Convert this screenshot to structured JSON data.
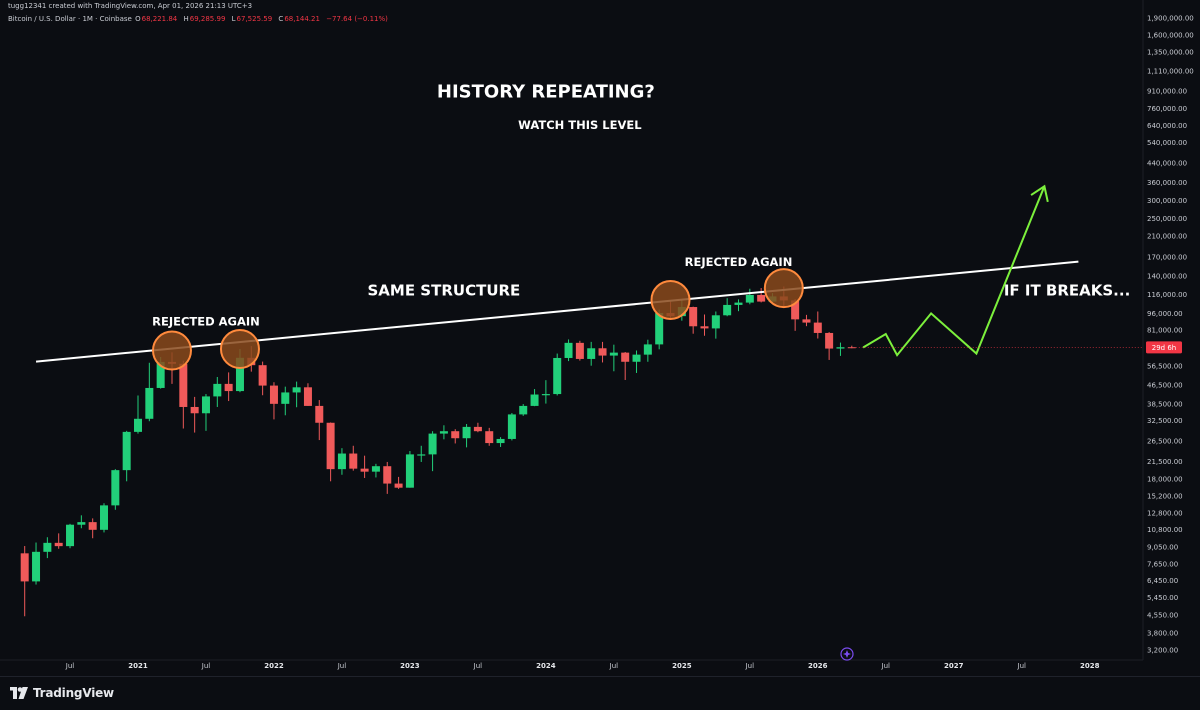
{
  "header": {
    "attribution": "tugg12341 created with TradingView.com, Apr 01, 2026 21:13 UTC+3",
    "symbol": "Bitcoin / U.S. Dollar · 1M · Coinbase",
    "ohlc": [
      {
        "label": "O",
        "value": "68,221.84"
      },
      {
        "label": "H",
        "value": "69,285.99"
      },
      {
        "label": "L",
        "value": "67,525.59"
      },
      {
        "label": "C",
        "value": "68,144.21"
      }
    ],
    "change": "−77.64 (−0.11%)"
  },
  "footer": {
    "brand": "TradingView"
  },
  "colors": {
    "up": "#22d07a",
    "down": "#f05a5a",
    "background": "#0b0d12",
    "projection": "#7cf03c",
    "circle_fill": "#8a4a1c",
    "circle_stroke": "#ff8a3d",
    "trendline": "#ffffff",
    "price_badge": "#f23645"
  },
  "chart_data": {
    "type": "candlestick",
    "scale": "log",
    "ylim": [
      3000,
      2000000
    ],
    "xlim": [
      "2020-05",
      "2028-06"
    ],
    "y_ticks": [
      "1,900,000.00",
      "1,600,000.00",
      "1,350,000.00",
      "1,110,000.00",
      "910,000.00",
      "760,000.00",
      "640,000.00",
      "540,000.00",
      "440,000.00",
      "360,000.00",
      "300,000.00",
      "250,000.00",
      "210,000.00",
      "170,000.00",
      "140,000.00",
      "116,000.00",
      "96,000.00",
      "81,000.00",
      "56,500.00",
      "46,500.00",
      "38,500.00",
      "32,500.00",
      "26,500.00",
      "21,500.00",
      "18,000.00",
      "15,200.00",
      "12,800.00",
      "10,800.00",
      "9,050.00",
      "7,650.00",
      "6,450.00",
      "5,450.00",
      "4,550.00",
      "3,800.00",
      "3,200.00"
    ],
    "x_ticks": [
      {
        "label": "Jul",
        "date": "2020-07"
      },
      {
        "label": "2021",
        "date": "2021-01"
      },
      {
        "label": "Jul",
        "date": "2021-07"
      },
      {
        "label": "2022",
        "date": "2022-01"
      },
      {
        "label": "Jul",
        "date": "2022-07"
      },
      {
        "label": "2023",
        "date": "2023-01"
      },
      {
        "label": "Jul",
        "date": "2023-07"
      },
      {
        "label": "2024",
        "date": "2024-01"
      },
      {
        "label": "Jul",
        "date": "2024-07"
      },
      {
        "label": "2025",
        "date": "2025-01"
      },
      {
        "label": "Jul",
        "date": "2025-07"
      },
      {
        "label": "2026",
        "date": "2026-01"
      },
      {
        "label": "Jul",
        "date": "2026-07"
      },
      {
        "label": "2027",
        "date": "2027-01"
      },
      {
        "label": "Jul",
        "date": "2027-07"
      },
      {
        "label": "2028",
        "date": "2028-01"
      }
    ],
    "current_price_label": "29d 6h",
    "candles": [
      [
        "2020-03",
        8500,
        9150,
        4500,
        6400
      ],
      [
        "2020-04",
        6400,
        9480,
        6200,
        8630
      ],
      [
        "2020-05",
        8630,
        10000,
        8100,
        9450
      ],
      [
        "2020-06",
        9450,
        10400,
        8900,
        9140
      ],
      [
        "2020-07",
        9140,
        11450,
        8950,
        11350
      ],
      [
        "2020-08",
        11350,
        12480,
        10950,
        11650
      ],
      [
        "2020-09",
        11650,
        12100,
        9900,
        10780
      ],
      [
        "2020-10",
        10780,
        14100,
        10500,
        13800
      ],
      [
        "2020-11",
        13800,
        19900,
        13200,
        19700
      ],
      [
        "2020-12",
        19700,
        29300,
        17600,
        29000
      ],
      [
        "2021-01",
        29000,
        41900,
        28500,
        33100
      ],
      [
        "2021-02",
        33100,
        58300,
        32300,
        45200
      ],
      [
        "2021-03",
        45200,
        61800,
        44900,
        58800
      ],
      [
        "2021-04",
        58800,
        64800,
        47100,
        57700
      ],
      [
        "2021-05",
        57700,
        59500,
        30000,
        37300
      ],
      [
        "2021-06",
        37300,
        41300,
        28800,
        35000
      ],
      [
        "2021-07",
        35000,
        42500,
        29300,
        41500
      ],
      [
        "2021-08",
        41500,
        50500,
        37300,
        47100
      ],
      [
        "2021-09",
        47100,
        52900,
        39600,
        43800
      ],
      [
        "2021-10",
        43800,
        67000,
        43300,
        61300
      ],
      [
        "2021-11",
        61300,
        69000,
        53300,
        56900
      ],
      [
        "2021-12",
        56900,
        59000,
        42000,
        46300
      ],
      [
        "2022-01",
        46300,
        47900,
        32900,
        38500
      ],
      [
        "2022-02",
        38500,
        45800,
        34300,
        43200
      ],
      [
        "2022-03",
        43200,
        48200,
        37200,
        45500
      ],
      [
        "2022-04",
        45500,
        47400,
        37700,
        37700
      ],
      [
        "2022-05",
        37700,
        40000,
        26700,
        31800
      ],
      [
        "2022-06",
        31800,
        31900,
        17600,
        19900
      ],
      [
        "2022-07",
        19900,
        24600,
        18800,
        23300
      ],
      [
        "2022-08",
        23300,
        25200,
        19600,
        20000
      ],
      [
        "2022-09",
        20000,
        22800,
        18200,
        19400
      ],
      [
        "2022-10",
        19400,
        21000,
        18300,
        20500
      ],
      [
        "2022-11",
        20500,
        21400,
        15500,
        17200
      ],
      [
        "2022-12",
        17200,
        18400,
        16300,
        16500
      ],
      [
        "2023-01",
        16500,
        23900,
        16500,
        23100
      ],
      [
        "2023-02",
        23100,
        25200,
        21400,
        23100
      ],
      [
        "2023-03",
        23100,
        29200,
        19500,
        28500
      ],
      [
        "2023-04",
        28500,
        31000,
        26900,
        29200
      ],
      [
        "2023-05",
        29200,
        29800,
        25800,
        27200
      ],
      [
        "2023-06",
        27200,
        31400,
        24800,
        30500
      ],
      [
        "2023-07",
        30500,
        31800,
        28900,
        29200
      ],
      [
        "2023-08",
        29200,
        30200,
        25200,
        25900
      ],
      [
        "2023-09",
        25900,
        27500,
        24900,
        27000
      ],
      [
        "2023-10",
        27000,
        35100,
        26600,
        34600
      ],
      [
        "2023-11",
        34600,
        38400,
        34100,
        37700
      ],
      [
        "2023-12",
        37700,
        44700,
        37600,
        42300
      ],
      [
        "2024-01",
        42300,
        48900,
        38600,
        42500
      ],
      [
        "2024-02",
        42500,
        64000,
        41900,
        61200
      ],
      [
        "2024-03",
        61200,
        73800,
        59300,
        71300
      ],
      [
        "2024-04",
        71300,
        72800,
        59600,
        60600
      ],
      [
        "2024-05",
        60600,
        72000,
        56600,
        67500
      ],
      [
        "2024-06",
        67500,
        72000,
        58500,
        62700
      ],
      [
        "2024-07",
        62700,
        70000,
        53500,
        64600
      ],
      [
        "2024-08",
        64600,
        65000,
        49000,
        58900
      ],
      [
        "2024-09",
        58900,
        66000,
        52600,
        63300
      ],
      [
        "2024-10",
        63300,
        73600,
        58900,
        70200
      ],
      [
        "2024-11",
        70200,
        99800,
        66800,
        96400
      ],
      [
        "2024-12",
        96400,
        108300,
        90600,
        93400
      ],
      [
        "2025-01",
        93400,
        109400,
        89200,
        102400
      ],
      [
        "2025-02",
        102400,
        102800,
        78200,
        84300
      ],
      [
        "2025-03",
        84300,
        95000,
        76600,
        82500
      ],
      [
        "2025-04",
        82500,
        97900,
        74400,
        94200
      ],
      [
        "2025-05",
        94200,
        112000,
        93300,
        104600
      ],
      [
        "2025-06",
        104600,
        110600,
        98200,
        107100
      ],
      [
        "2025-07",
        107100,
        123200,
        105300,
        115700
      ],
      [
        "2025-08",
        115700,
        124100,
        107300,
        108200
      ],
      [
        "2025-09",
        108200,
        117900,
        107200,
        114000
      ],
      [
        "2025-10",
        114000,
        126000,
        103500,
        109500
      ],
      [
        "2025-11",
        109500,
        111000,
        80500,
        90400
      ],
      [
        "2025-12",
        90400,
        94600,
        84400,
        87500
      ],
      [
        "2026-01",
        87500,
        97900,
        74500,
        78800
      ],
      [
        "2026-02",
        78800,
        79500,
        60000,
        67300
      ],
      [
        "2026-03",
        67300,
        71500,
        62500,
        68221.84
      ],
      [
        "2026-04",
        68221.84,
        69285.99,
        67525.59,
        68144.21
      ]
    ],
    "trendline": {
      "start": {
        "date": "2020-04",
        "price": 59000
      },
      "end": {
        "date": "2027-12",
        "price": 162000
      }
    },
    "rejection_circles": [
      {
        "date": "2021-04",
        "price": 66000
      },
      {
        "date": "2021-10",
        "price": 67000
      },
      {
        "date": "2024-12",
        "price": 110000
      },
      {
        "date": "2025-10",
        "price": 124000
      }
    ],
    "projection_path": [
      {
        "date": "2026-05",
        "price": 68000
      },
      {
        "date": "2026-07",
        "price": 78000
      },
      {
        "date": "2026-08",
        "price": 63000
      },
      {
        "date": "2026-11",
        "price": 96000
      },
      {
        "date": "2027-03",
        "price": 64000
      },
      {
        "date": "2027-09",
        "price": 347000
      }
    ],
    "annotations": [
      {
        "id": "title",
        "text": "HISTORY REPEATING?",
        "date": "2024-01",
        "price": 850000,
        "size": "large"
      },
      {
        "id": "subtitle",
        "text": "WATCH THIS LEVEL",
        "date": "2024-04",
        "price": 620000,
        "size": "small"
      },
      {
        "id": "same-structure",
        "text": "SAME STRUCTURE",
        "date": "2023-04",
        "price": 115000,
        "size": "medium"
      },
      {
        "id": "rejected-left",
        "text": "REJECTED AGAIN",
        "date": "2021-07",
        "price": 85000,
        "size": "small"
      },
      {
        "id": "rejected-right",
        "text": "REJECTED AGAIN",
        "date": "2025-06",
        "price": 155000,
        "size": "small"
      },
      {
        "id": "if-it-breaks",
        "text": "IF IT BREAKS...",
        "date": "2027-11",
        "price": 115000,
        "size": "medium"
      }
    ]
  }
}
